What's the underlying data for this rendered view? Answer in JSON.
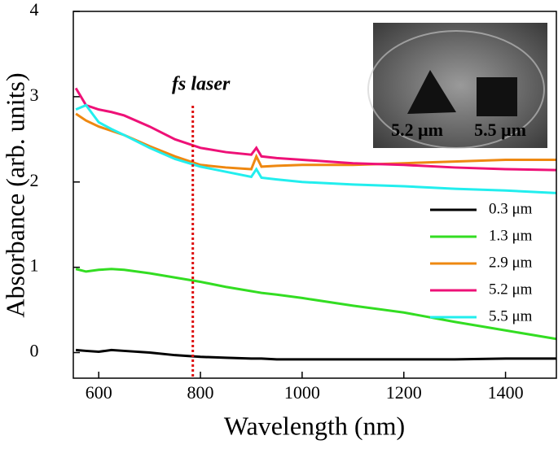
{
  "chart_data": {
    "type": "line",
    "x_label": "Wavelength (nm)",
    "y_label": "Absorbance (arb. units)",
    "x": [
      555,
      575,
      600,
      625,
      650,
      700,
      750,
      800,
      850,
      900,
      910,
      920,
      950,
      1000,
      1100,
      1200,
      1300,
      1400,
      1500
    ],
    "series": [
      {
        "name": "0.3 μm",
        "color": "#000000",
        "values": [
          0.03,
          0.02,
          0.01,
          0.03,
          0.02,
          0.0,
          -0.03,
          -0.05,
          -0.06,
          -0.07,
          -0.07,
          -0.07,
          -0.08,
          -0.08,
          -0.08,
          -0.08,
          -0.08,
          -0.07,
          -0.07
        ]
      },
      {
        "name": "1.3 μm",
        "color": "#33dd22",
        "values": [
          0.98,
          0.95,
          0.97,
          0.98,
          0.97,
          0.93,
          0.88,
          0.83,
          0.77,
          0.72,
          0.71,
          0.7,
          0.68,
          0.64,
          0.55,
          0.47,
          0.36,
          0.26,
          0.16
        ]
      },
      {
        "name": "2.9 μm",
        "color": "#ee8811",
        "values": [
          2.8,
          2.72,
          2.65,
          2.6,
          2.55,
          2.42,
          2.3,
          2.2,
          2.17,
          2.15,
          2.3,
          2.18,
          2.19,
          2.2,
          2.2,
          2.22,
          2.24,
          2.26,
          2.26
        ]
      },
      {
        "name": "5.2 μm",
        "color": "#ee1177",
        "values": [
          3.1,
          2.9,
          2.85,
          2.82,
          2.78,
          2.65,
          2.5,
          2.4,
          2.35,
          2.32,
          2.4,
          2.3,
          2.28,
          2.26,
          2.22,
          2.2,
          2.17,
          2.15,
          2.14
        ]
      },
      {
        "name": "5.5 μm",
        "color": "#22eeee",
        "values": [
          2.85,
          2.9,
          2.7,
          2.62,
          2.55,
          2.4,
          2.27,
          2.18,
          2.12,
          2.06,
          2.15,
          2.05,
          2.03,
          2.0,
          1.97,
          1.95,
          1.92,
          1.9,
          1.87
        ]
      }
    ],
    "xlim": [
      550,
      1500
    ],
    "xticks": [
      600,
      800,
      1000,
      1200,
      1400
    ],
    "ylim": [
      -0.3,
      4
    ],
    "yticks": [
      0,
      1,
      2,
      3,
      4
    ],
    "legend": "lower right",
    "annotation": {
      "text": "fs laser",
      "x": 785,
      "color": "#dd1111"
    },
    "inset_labels": [
      "5.2 μm",
      "5.5 μm"
    ]
  }
}
